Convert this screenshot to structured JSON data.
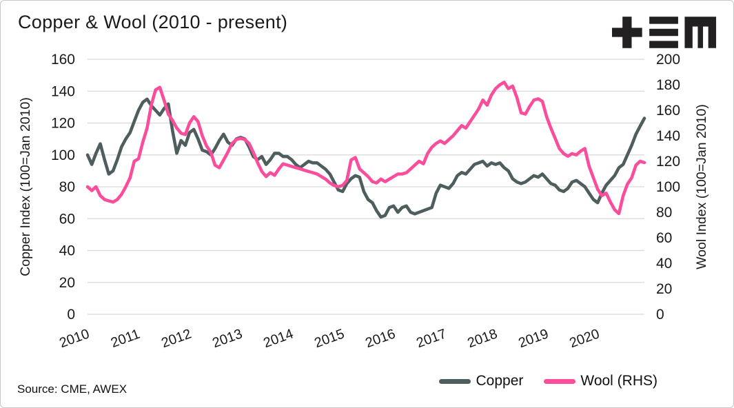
{
  "header": {
    "title": "Copper & Wool (2010 - present)"
  },
  "logo": {
    "name": "tem-logo",
    "color": "#232021"
  },
  "source": {
    "text": "Source: CME, AWEX"
  },
  "legend": {
    "items": [
      {
        "label": "Copper",
        "color": "#4e5e5e"
      },
      {
        "label": "Wool (RHS)",
        "color": "#fa4d9b"
      }
    ]
  },
  "colors": {
    "copper_line": "#4e5e5e",
    "wool_line": "#fa4d9b",
    "gridline": "#d9d9d9",
    "text": "#1a1a1a",
    "background": "#ffffff"
  },
  "chart_data": {
    "type": "line",
    "title": "Copper & Wool (2010 - present)",
    "x_interval": "monthly",
    "x_start": "Jan 2010",
    "x_end": "Dec 2020",
    "x_tick_labels": [
      "2010",
      "2011",
      "2012",
      "2013",
      "2014",
      "2015",
      "2016",
      "2017",
      "2018",
      "2019",
      "2020"
    ],
    "grid": true,
    "legend_position": "bottom-right",
    "left_axis": {
      "label": "Copper Index (100=Jan 2010)",
      "min": 0,
      "max": 160,
      "tick_step": 20,
      "ticks": [
        "160",
        "140",
        "120",
        "100",
        "80",
        "60",
        "40",
        "20",
        "0"
      ]
    },
    "right_axis": {
      "label": "Wool Index (100=Jan 2010)",
      "min": 0,
      "max": 200,
      "tick_step": 20,
      "ticks": [
        "200",
        "180",
        "160",
        "140",
        "120",
        "100",
        "80",
        "60",
        "40",
        "20",
        "0"
      ]
    },
    "series": [
      {
        "name": "Copper",
        "axis": "left",
        "color": "#4e5e5e",
        "values": [
          100,
          94,
          101,
          107,
          97,
          88,
          90,
          97,
          105,
          110,
          114,
          121,
          128,
          133,
          135,
          131,
          128,
          125,
          129,
          132,
          115,
          101,
          109,
          106,
          114,
          116,
          110,
          103,
          102,
          100,
          104,
          109,
          113,
          108,
          106,
          110,
          111,
          110,
          105,
          99,
          97,
          99,
          94,
          97,
          101,
          101,
          99,
          99,
          97,
          94,
          92,
          94,
          96,
          95,
          95,
          93,
          91,
          88,
          83,
          78,
          77,
          82,
          85,
          87,
          86,
          77,
          72,
          70,
          65,
          61,
          62,
          67,
          68,
          64,
          67,
          68,
          64,
          63,
          64,
          65,
          66,
          67,
          76,
          81,
          80,
          79,
          82,
          87,
          89,
          88,
          91,
          94,
          95,
          96,
          93,
          95,
          94,
          95,
          92,
          90,
          85,
          83,
          82,
          83,
          85,
          87,
          86,
          88,
          85,
          82,
          81,
          78,
          77,
          79,
          83,
          84,
          82,
          80,
          76,
          72,
          70,
          76,
          81,
          84,
          87,
          92,
          94,
          100,
          106,
          113,
          118,
          123
        ]
      },
      {
        "name": "Wool (RHS)",
        "axis": "right",
        "color": "#fa4d9b",
        "values": [
          100,
          97,
          100,
          93,
          90,
          89,
          88,
          90,
          94,
          100,
          107,
          120,
          122,
          135,
          146,
          164,
          176,
          178,
          168,
          157,
          152,
          146,
          142,
          141,
          150,
          155,
          151,
          140,
          132,
          127,
          117,
          115,
          121,
          127,
          134,
          137,
          138,
          137,
          134,
          127,
          119,
          112,
          108,
          111,
          109,
          114,
          118,
          117,
          116,
          115,
          114,
          113,
          112,
          111,
          110,
          108,
          106,
          103,
          101,
          100,
          101,
          105,
          121,
          123,
          114,
          111,
          108,
          104,
          103,
          106,
          104,
          106,
          108,
          110,
          110,
          111,
          114,
          117,
          120,
          118,
          126,
          131,
          134,
          136,
          134,
          137,
          140,
          144,
          148,
          146,
          151,
          156,
          161,
          168,
          164,
          172,
          177,
          180,
          182,
          177,
          179,
          170,
          158,
          157,
          163,
          168,
          169,
          167,
          155,
          146,
          138,
          130,
          126,
          124,
          126,
          125,
          128,
          130,
          116,
          107,
          98,
          93,
          95,
          88,
          82,
          79,
          93,
          102,
          107,
          117,
          120,
          119
        ]
      }
    ]
  }
}
